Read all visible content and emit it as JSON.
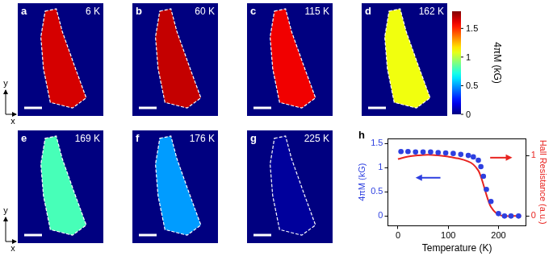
{
  "axes_key": {
    "x": "x",
    "y": "y"
  },
  "maps": {
    "background_value": 0,
    "colorbar": {
      "label": "4πM (kG)",
      "range": [
        0,
        1.8
      ],
      "ticks": [
        0,
        0.5,
        1,
        1.5
      ]
    },
    "panels": [
      {
        "letter": "a",
        "temperature": "6 K",
        "value": 1.65
      },
      {
        "letter": "b",
        "temperature": "60 K",
        "value": 1.68
      },
      {
        "letter": "c",
        "temperature": "115 K",
        "value": 1.6
      },
      {
        "letter": "d",
        "temperature": "162 K",
        "value": 1.1
      },
      {
        "letter": "e",
        "temperature": "169 K",
        "value": 0.8
      },
      {
        "letter": "f",
        "temperature": "176 K",
        "value": 0.5
      },
      {
        "letter": "g",
        "temperature": "225 K",
        "value": 0.05
      }
    ]
  },
  "chart_data": {
    "type": "scatter",
    "panel_label": "h",
    "x_label": "Temperature (K)",
    "y_label": "4πM (kG)",
    "y2_label": "Hall Resistance (a.u.)",
    "xlim": [
      -20,
      255
    ],
    "xticks": [
      0,
      100,
      200
    ],
    "ylim": [
      -0.2,
      1.6
    ],
    "yticks": [
      0,
      0.5,
      1,
      1.5
    ],
    "y2lim": [
      -0.16,
      1.28
    ],
    "y2ticks": [
      0,
      1
    ],
    "grid": false,
    "series": [
      {
        "type": "scatter",
        "marker": "circle",
        "color": "#2d3fe0",
        "x": [
          6,
          20,
          35,
          50,
          65,
          80,
          95,
          110,
          125,
          140,
          150,
          160,
          165,
          170,
          176,
          185,
          200,
          212,
          225,
          240
        ],
        "values": [
          1.33,
          1.33,
          1.32,
          1.32,
          1.32,
          1.31,
          1.3,
          1.29,
          1.27,
          1.25,
          1.22,
          1.15,
          1.02,
          0.82,
          0.55,
          0.3,
          0.05,
          0,
          0,
          0
        ]
      },
      {
        "type": "line",
        "line_style": "solid",
        "color": "#e8231f",
        "axis": "y2",
        "x": [
          0,
          20,
          40,
          60,
          80,
          100,
          120,
          140,
          150,
          160,
          165,
          170,
          175,
          180,
          185,
          195,
          205,
          215,
          230,
          245
        ],
        "values": [
          0.94,
          0.98,
          1.0,
          1.01,
          1.0,
          0.98,
          0.95,
          0.9,
          0.85,
          0.75,
          0.65,
          0.52,
          0.38,
          0.25,
          0.15,
          0.05,
          0.01,
          0,
          0,
          0
        ]
      }
    ]
  }
}
